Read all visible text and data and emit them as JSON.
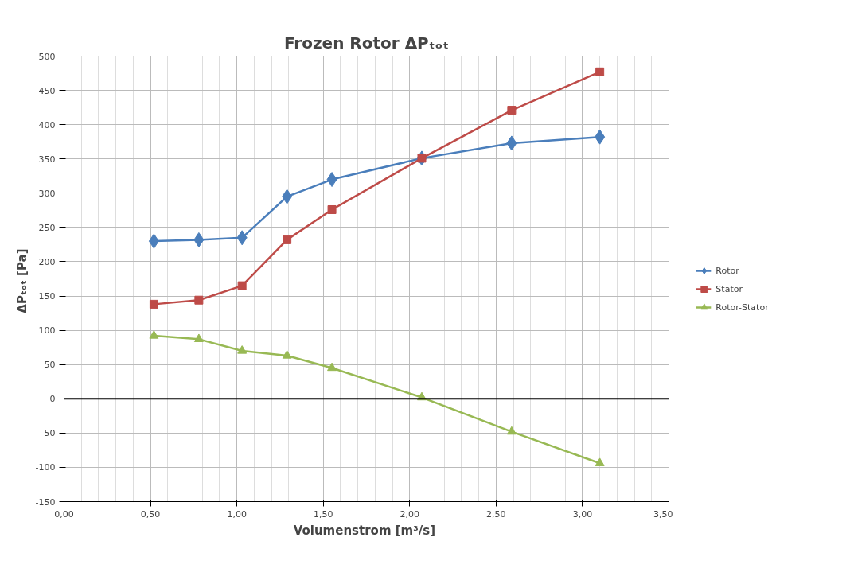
{
  "chart_data": {
    "type": "line",
    "title": "Frozen Rotor ΔPₜₒₜ",
    "xlabel": "Volumenstrom  [m³/s]",
    "ylabel": "ΔPₜₒₜ  [Pa]",
    "x": [
      0.52,
      0.78,
      1.03,
      1.29,
      1.55,
      2.07,
      2.59,
      3.1
    ],
    "series": [
      {
        "name": "Rotor",
        "color": "#4a7ebb",
        "marker": "diamond",
        "values": [
          230,
          232,
          235,
          295,
          320,
          351,
          373,
          382
        ]
      },
      {
        "name": "Stator",
        "color": "#be4b48",
        "marker": "square",
        "values": [
          138,
          144,
          165,
          232,
          276,
          351,
          421,
          477
        ]
      },
      {
        "name": "Rotor-Stator",
        "color": "#98b954",
        "marker": "triangle",
        "values": [
          92,
          87,
          70,
          63,
          45,
          2,
          -48,
          -94
        ]
      }
    ],
    "xlim": [
      0,
      3.5
    ],
    "ylim": [
      -150,
      500
    ],
    "xticks": [
      {
        "value": 0,
        "label": "0,00"
      },
      {
        "value": 0.5,
        "label": "0,50"
      },
      {
        "value": 1,
        "label": "1,00"
      },
      {
        "value": 1.5,
        "label": "1,50"
      },
      {
        "value": 2,
        "label": "2,00"
      },
      {
        "value": 2.5,
        "label": "2,50"
      },
      {
        "value": 3,
        "label": "3,00"
      },
      {
        "value": 3.5,
        "label": "3,50"
      }
    ],
    "yticks": [
      -150,
      -100,
      -50,
      0,
      50,
      100,
      150,
      200,
      250,
      300,
      350,
      400,
      450,
      500
    ],
    "ref_lines": [
      {
        "axis": "y",
        "value": 0,
        "color": "#000000"
      }
    ],
    "grid": true,
    "legend": "right",
    "line_style": "solid"
  }
}
